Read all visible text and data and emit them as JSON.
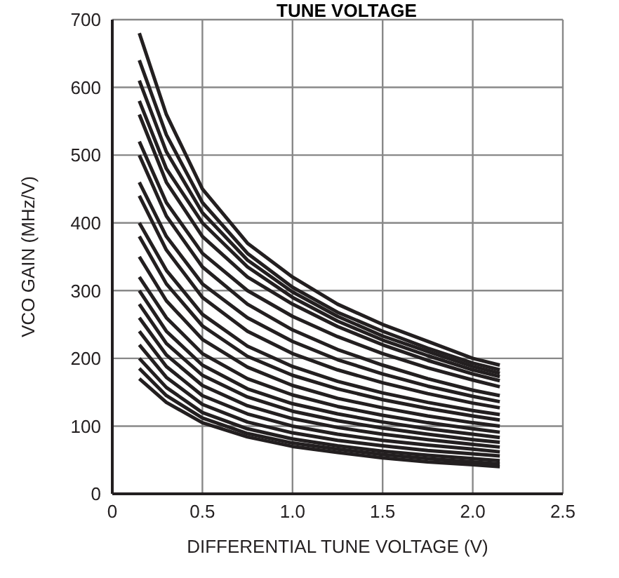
{
  "chart_data": {
    "type": "line",
    "title": "TUNE VOLTAGE",
    "xlabel": "DIFFERENTIAL TUNE VOLTAGE (V)",
    "ylabel": "VCO GAIN (MHz/V)",
    "x": [
      0.15,
      0.3,
      0.5,
      0.75,
      1.0,
      1.25,
      1.5,
      1.75,
      2.0,
      2.15
    ],
    "xlim": [
      0,
      2.5
    ],
    "xticks": [
      0,
      0.5,
      {
        "value": 1,
        "label": "1.0"
      },
      1.5,
      {
        "value": 2,
        "label": "2.0"
      },
      2.5
    ],
    "ylim": [
      0,
      700
    ],
    "yticks": [
      0,
      100,
      200,
      300,
      400,
      500,
      600,
      700
    ],
    "grid": true,
    "marker": "none",
    "line_style": "solid",
    "series": [
      {
        "color": "#231f20",
        "values": [
          680,
          560,
          450,
          370,
          320,
          280,
          250,
          225,
          200,
          190
        ]
      },
      {
        "color": "#231f20",
        "values": [
          640,
          530,
          430,
          355,
          305,
          268,
          240,
          215,
          193,
          183
        ]
      },
      {
        "color": "#231f20",
        "values": [
          610,
          505,
          415,
          345,
          298,
          262,
          233,
          210,
          188,
          178
        ]
      },
      {
        "color": "#231f20",
        "values": [
          580,
          480,
          400,
          335,
          290,
          255,
          227,
          204,
          183,
          173
        ]
      },
      {
        "color": "#231f20",
        "values": [
          560,
          460,
          380,
          320,
          280,
          247,
          220,
          197,
          177,
          167
        ]
      },
      {
        "color": "#231f20",
        "values": [
          520,
          430,
          355,
          300,
          262,
          232,
          207,
          186,
          168,
          158
        ]
      },
      {
        "color": "#231f20",
        "values": [
          500,
          410,
          335,
          280,
          242,
          213,
          190,
          170,
          153,
          145
        ]
      },
      {
        "color": "#231f20",
        "values": [
          460,
          380,
          310,
          260,
          225,
          198,
          177,
          159,
          144,
          136
        ]
      },
      {
        "color": "#231f20",
        "values": [
          440,
          360,
          290,
          240,
          207,
          183,
          164,
          148,
          134,
          127
        ]
      },
      {
        "color": "#231f20",
        "values": [
          400,
          330,
          265,
          218,
          188,
          166,
          149,
          135,
          123,
          117
        ]
      },
      {
        "color": "#231f20",
        "values": [
          380,
          310,
          248,
          203,
          175,
          155,
          139,
          126,
          115,
          109
        ]
      },
      {
        "color": "#231f20",
        "values": [
          350,
          285,
          228,
          187,
          160,
          141,
          127,
          115,
          105,
          100
        ]
      },
      {
        "color": "#231f20",
        "values": [
          320,
          260,
          207,
          170,
          146,
          129,
          116,
          105,
          96,
          91
        ]
      },
      {
        "color": "#231f20",
        "values": [
          300,
          240,
          190,
          155,
          133,
          118,
          106,
          96,
          88,
          83
        ]
      },
      {
        "color": "#231f20",
        "values": [
          280,
          222,
          175,
          143,
          122,
          108,
          97,
          88,
          80,
          76
        ]
      },
      {
        "color": "#231f20",
        "values": [
          260,
          205,
          160,
          130,
          111,
          98,
          88,
          80,
          73,
          69
        ]
      },
      {
        "color": "#231f20",
        "values": [
          240,
          188,
          145,
          118,
          100,
          88,
          79,
          72,
          66,
          62
        ]
      },
      {
        "color": "#231f20",
        "values": [
          220,
          172,
          132,
          106,
          90,
          79,
          71,
          64,
          59,
          56
        ]
      },
      {
        "color": "#231f20",
        "values": [
          200,
          157,
          120,
          96,
          81,
          71,
          63,
          57,
          52,
          49
        ]
      },
      {
        "color": "#231f20",
        "values": [
          185,
          145,
          112,
          89,
          75,
          66,
          58,
          52,
          47,
          44
        ]
      },
      {
        "color": "#231f20",
        "values": [
          170,
          135,
          105,
          84,
          70,
          61,
          53,
          47,
          43,
          40
        ]
      }
    ]
  }
}
